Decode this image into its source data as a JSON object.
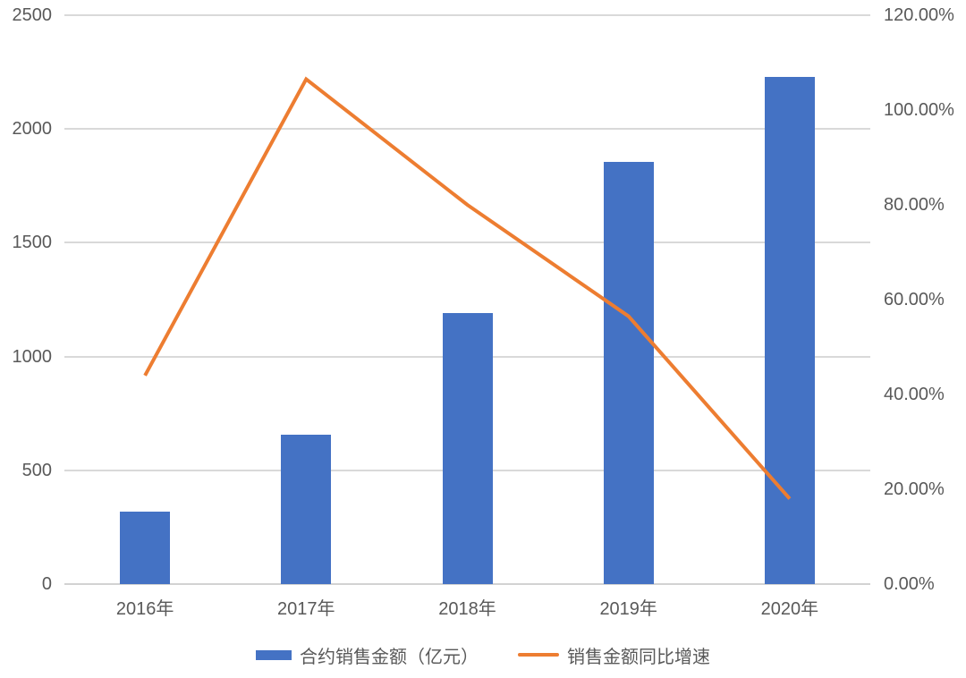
{
  "chart_data": {
    "type": "bar",
    "subtype": "combo-bar-line-dual-axis",
    "title": "",
    "categories": [
      "2016年",
      "2017年",
      "2018年",
      "2019年",
      "2020年"
    ],
    "series": [
      {
        "name": "合约销售金额（亿元）",
        "type": "bar",
        "axis": "left",
        "color": "#4472c4",
        "values": [
          320,
          658,
          1190,
          1855,
          2230
        ]
      },
      {
        "name": "销售金额同比增速",
        "type": "line",
        "axis": "right",
        "color": "#ed7d31",
        "values_percent": [
          44,
          106.5,
          80,
          56.5,
          18
        ]
      }
    ],
    "left_axis": {
      "min": 0,
      "max": 2500,
      "step": 500,
      "tick_labels": [
        "0",
        "500",
        "1000",
        "1500",
        "2000",
        "2500"
      ]
    },
    "right_axis": {
      "min": 0,
      "max": 120,
      "step": 20,
      "tick_labels": [
        "0.00%",
        "20.00%",
        "40.00%",
        "60.00%",
        "80.00%",
        "100.00%",
        "120.00%"
      ]
    },
    "grid": true,
    "gridline_color": "#d9d9d9",
    "legend_position": "bottom",
    "xlabel": "",
    "ylabel_left": "",
    "ylabel_right": ""
  }
}
